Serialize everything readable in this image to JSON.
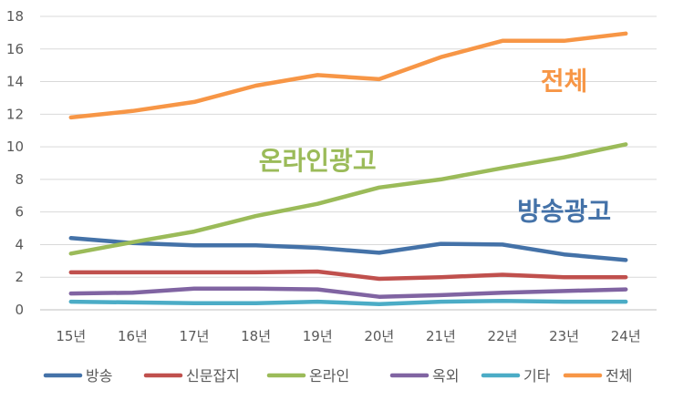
{
  "chart_data": {
    "type": "line",
    "categories": [
      "15년",
      "16년",
      "17년",
      "18년",
      "19년",
      "20년",
      "21년",
      "22년",
      "23년",
      "24년"
    ],
    "ylim": [
      0,
      18
    ],
    "yticks": [
      0,
      2,
      4,
      6,
      8,
      10,
      12,
      14,
      16,
      18
    ],
    "grid": true,
    "legend_position": "bottom",
    "series": [
      {
        "name": "방송",
        "color": "#4472A8",
        "values": [
          4.4,
          4.1,
          3.95,
          3.95,
          3.8,
          3.5,
          4.05,
          4.0,
          3.4,
          3.05
        ]
      },
      {
        "name": "신문잡지",
        "color": "#C0504D",
        "values": [
          2.3,
          2.3,
          2.3,
          2.3,
          2.35,
          1.9,
          2.0,
          2.15,
          2.0,
          2.0
        ]
      },
      {
        "name": "온라인",
        "color": "#9BBB59",
        "values": [
          3.45,
          4.15,
          4.8,
          5.75,
          6.5,
          7.5,
          8.0,
          8.7,
          9.35,
          10.15
        ]
      },
      {
        "name": "옥외",
        "color": "#8064A2",
        "values": [
          1.0,
          1.05,
          1.3,
          1.3,
          1.25,
          0.8,
          0.9,
          1.05,
          1.15,
          1.25
        ]
      },
      {
        "name": "기타",
        "color": "#4BACC6",
        "values": [
          0.5,
          0.45,
          0.4,
          0.4,
          0.5,
          0.35,
          0.5,
          0.55,
          0.5,
          0.5
        ]
      },
      {
        "name": "전체",
        "color": "#F79646",
        "values": [
          11.8,
          12.2,
          12.75,
          13.75,
          14.4,
          14.15,
          15.5,
          16.5,
          16.5,
          16.95
        ]
      }
    ],
    "annotations": [
      {
        "text": "전체",
        "color": "#F79646",
        "x_category": "23년",
        "y": 13.5
      },
      {
        "text": "온라인광고",
        "color": "#9BBB59",
        "x_category": "19년",
        "y": 8.6
      },
      {
        "text": "방송광고",
        "color": "#4472A8",
        "x_category": "23년",
        "y": 5.5
      }
    ]
  }
}
